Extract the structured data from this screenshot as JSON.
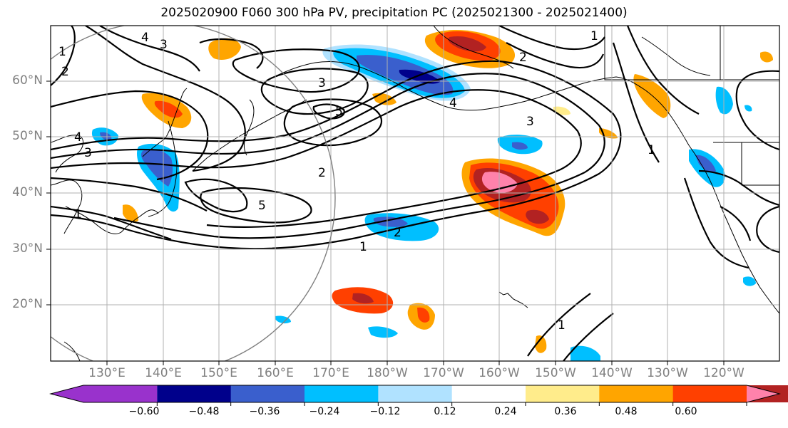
{
  "title": "2025020900 F060 300 hPa PV, precipitation PC (2025021300 - 2025021400)",
  "map": {
    "lat_labels": [
      "60°N",
      "50°N",
      "40°N",
      "30°N",
      "20°N"
    ],
    "lon_labels": [
      "130°E",
      "140°E",
      "150°E",
      "160°E",
      "170°E",
      "180°W",
      "170°W",
      "160°W",
      "150°W",
      "140°W",
      "130°W",
      "120°W"
    ],
    "contour_labels": [
      "1",
      "2",
      "4",
      "3",
      "4",
      "3",
      "5",
      "2",
      "5",
      "4",
      "1",
      "3",
      "2",
      "1",
      "2",
      "3",
      "1",
      "1",
      "1"
    ],
    "colors": {
      "coast": "#000000",
      "contour": "#000000",
      "grid": "#b0b0b0",
      "circle": "#808080"
    }
  },
  "colorbar": {
    "colors": [
      "#9932cc",
      "#00008b",
      "#3a5fcd",
      "#00bfff",
      "#b0e2ff",
      "#ffffff",
      "#ffec8b",
      "#ffa500",
      "#ff4000",
      "#b22222",
      "#ff82ab"
    ],
    "tick_labels": [
      "−0.60",
      "−0.48",
      "−0.36",
      "−0.24",
      "−0.12",
      "0.12",
      "0.24",
      "0.36",
      "0.48",
      "0.60"
    ]
  }
}
